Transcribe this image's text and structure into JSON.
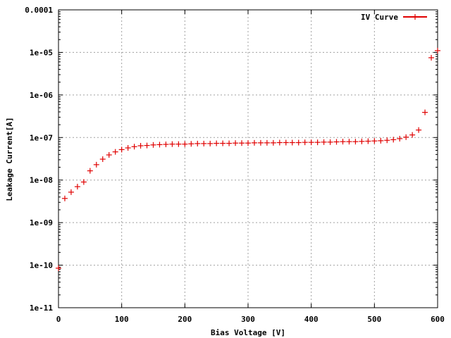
{
  "chart_data": {
    "type": "scatter",
    "title": "",
    "xlabel": "Bias Voltage [V]",
    "ylabel": "Leakage Current[A]",
    "xlim": [
      0,
      600
    ],
    "ylim": [
      1e-11,
      0.0001
    ],
    "y_scale": "log",
    "grid": true,
    "legend_position": "top-right",
    "x_ticks": [
      "0",
      "100",
      "200",
      "300",
      "400",
      "500",
      "600"
    ],
    "x_tick_values": [
      0,
      100,
      200,
      300,
      400,
      500,
      600
    ],
    "y_ticks": [
      "1e-11",
      "1e-10",
      "1e-09",
      "1e-08",
      "1e-07",
      "1e-06",
      "1e-05",
      "0.0001"
    ],
    "y_tick_values": [
      1e-11,
      1e-10,
      1e-09,
      1e-08,
      1e-07,
      1e-06,
      1e-05,
      0.0001
    ],
    "series": [
      {
        "name": "IV Curve",
        "color": "#e00000",
        "marker": "plus",
        "x": [
          0,
          10,
          20,
          30,
          40,
          50,
          60,
          70,
          80,
          90,
          100,
          110,
          120,
          130,
          140,
          150,
          160,
          170,
          180,
          190,
          200,
          210,
          220,
          230,
          240,
          250,
          260,
          270,
          280,
          290,
          300,
          310,
          320,
          330,
          340,
          350,
          360,
          370,
          380,
          390,
          400,
          410,
          420,
          430,
          440,
          450,
          460,
          470,
          480,
          490,
          500,
          510,
          520,
          530,
          540,
          550,
          560,
          570,
          580,
          590,
          600
        ],
        "y": [
          8.5e-11,
          3.7e-09,
          5.2e-09,
          7e-09,
          9e-09,
          1.65e-08,
          2.3e-08,
          3.1e-08,
          3.9e-08,
          4.6e-08,
          5.2e-08,
          5.7e-08,
          6.1e-08,
          6.4e-08,
          6.5e-08,
          6.7e-08,
          6.8e-08,
          6.9e-08,
          7e-08,
          7e-08,
          7e-08,
          7.1e-08,
          7.2e-08,
          7.2e-08,
          7.2e-08,
          7.3e-08,
          7.3e-08,
          7.3e-08,
          7.4e-08,
          7.4e-08,
          7.4e-08,
          7.5e-08,
          7.5e-08,
          7.5e-08,
          7.5e-08,
          7.6e-08,
          7.6e-08,
          7.6e-08,
          7.6e-08,
          7.7e-08,
          7.7e-08,
          7.7e-08,
          7.8e-08,
          7.8e-08,
          7.9e-08,
          8e-08,
          8e-08,
          8e-08,
          8.1e-08,
          8.2e-08,
          8.3e-08,
          8.4e-08,
          8.6e-08,
          8.9e-08,
          9.4e-08,
          1.02e-07,
          1.15e-07,
          1.5e-07,
          3.9e-07,
          7.5e-06,
          1.1e-05
        ]
      }
    ]
  }
}
